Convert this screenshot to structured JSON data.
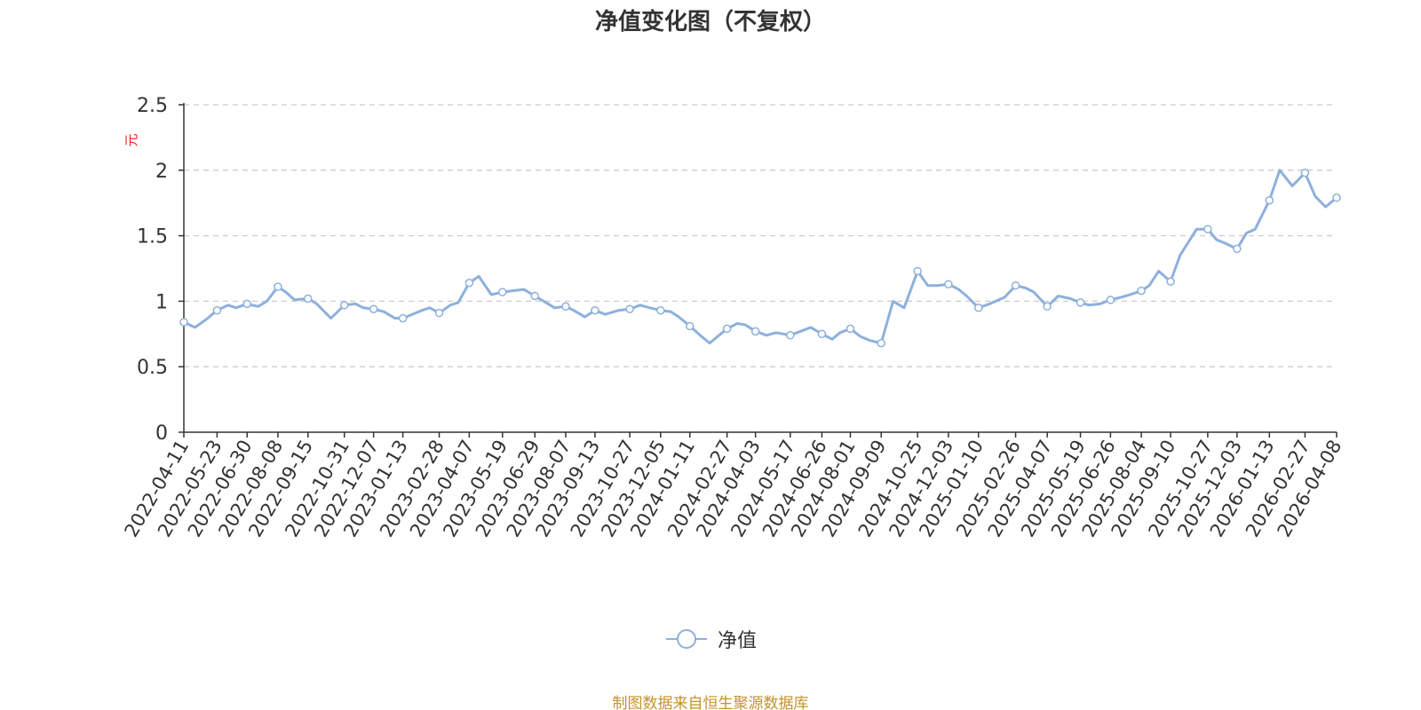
{
  "chart_data": {
    "type": "line",
    "title": "净值变化图（不复权）",
    "ylabel": "元",
    "xlabel": "",
    "ylim": [
      0,
      2.5
    ],
    "yticks": [
      0,
      0.5,
      1,
      1.5,
      2,
      2.5
    ],
    "ytick_labels": [
      "0",
      "0.5",
      "1",
      "1.5",
      "2",
      "2.5"
    ],
    "grid": "horizontal-dashed",
    "legend_position": "bottom-center",
    "line_color": "#8eb0dc",
    "x_tick_labels": [
      "2022-04-11",
      "2022-05-23",
      "2022-06-30",
      "2022-08-08",
      "2022-09-15",
      "2022-10-31",
      "2022-12-07",
      "2023-01-13",
      "2023-02-28",
      "2023-04-07",
      "2023-05-19",
      "2023-06-29",
      "2023-08-07",
      "2023-09-13",
      "2023-10-27",
      "2023-12-05",
      "2024-01-11",
      "2024-02-27",
      "2024-04-03",
      "2024-05-17",
      "2024-06-26",
      "2024-08-01",
      "2024-09-09",
      "2024-10-25",
      "2024-12-03",
      "2025-01-10",
      "2025-02-26",
      "2025-04-07",
      "2025-05-19",
      "2025-06-26",
      "2025-08-04",
      "2025-09-10",
      "2025-10-27",
      "2025-12-03",
      "2026-01-13",
      "2026-02-27",
      "2026-04-08"
    ],
    "series": [
      {
        "name": "净值",
        "x": [
          "2022-04-11",
          "2022-04-25",
          "2022-05-09",
          "2022-05-23",
          "2022-06-06",
          "2022-06-16",
          "2022-06-30",
          "2022-07-14",
          "2022-07-25",
          "2022-08-08",
          "2022-08-18",
          "2022-08-29",
          "2022-09-15",
          "2022-09-26",
          "2022-10-14",
          "2022-10-31",
          "2022-11-14",
          "2022-11-24",
          "2022-12-07",
          "2022-12-20",
          "2023-01-03",
          "2023-01-13",
          "2023-02-06",
          "2023-02-16",
          "2023-02-28",
          "2023-03-14",
          "2023-03-24",
          "2023-04-07",
          "2023-04-19",
          "2023-05-05",
          "2023-05-19",
          "2023-06-01",
          "2023-06-15",
          "2023-06-29",
          "2023-07-13",
          "2023-07-24",
          "2023-08-07",
          "2023-08-17",
          "2023-08-31",
          "2023-09-13",
          "2023-09-26",
          "2023-10-13",
          "2023-10-27",
          "2023-11-09",
          "2023-11-21",
          "2023-12-05",
          "2023-12-18",
          "2023-12-28",
          "2024-01-11",
          "2024-01-24",
          "2024-02-05",
          "2024-02-27",
          "2024-03-11",
          "2024-03-21",
          "2024-04-03",
          "2024-04-17",
          "2024-04-29",
          "2024-05-17",
          "2024-05-30",
          "2024-06-12",
          "2024-06-26",
          "2024-07-09",
          "2024-07-19",
          "2024-08-01",
          "2024-08-14",
          "2024-08-26",
          "2024-09-09",
          "2024-09-24",
          "2024-10-08",
          "2024-10-25",
          "2024-11-07",
          "2024-11-19",
          "2024-12-03",
          "2024-12-16",
          "2024-12-26",
          "2025-01-10",
          "2025-01-24",
          "2025-02-12",
          "2025-02-26",
          "2025-03-11",
          "2025-03-21",
          "2025-04-07",
          "2025-04-21",
          "2025-05-06",
          "2025-05-19",
          "2025-05-30",
          "2025-06-13",
          "2025-06-26",
          "2025-07-09",
          "2025-07-21",
          "2025-08-04",
          "2025-08-14",
          "2025-08-26",
          "2025-09-10",
          "2025-09-22",
          "2025-10-13",
          "2025-10-27",
          "2025-11-07",
          "2025-11-19",
          "2025-12-03",
          "2025-12-15",
          "2025-12-26",
          "2026-01-13",
          "2026-01-26",
          "2026-02-11",
          "2026-02-27",
          "2026-03-12",
          "2026-03-25",
          "2026-04-08"
        ],
        "values": [
          0.84,
          0.8,
          0.86,
          0.93,
          0.97,
          0.95,
          0.98,
          0.96,
          1.0,
          1.11,
          1.07,
          1.01,
          1.02,
          0.98,
          0.87,
          0.97,
          0.98,
          0.95,
          0.94,
          0.92,
          0.87,
          0.87,
          0.93,
          0.95,
          0.91,
          0.97,
          0.99,
          1.14,
          1.19,
          1.05,
          1.07,
          1.08,
          1.09,
          1.04,
          0.99,
          0.95,
          0.96,
          0.93,
          0.88,
          0.93,
          0.9,
          0.93,
          0.94,
          0.97,
          0.95,
          0.93,
          0.92,
          0.88,
          0.81,
          0.74,
          0.68,
          0.79,
          0.83,
          0.82,
          0.77,
          0.74,
          0.76,
          0.74,
          0.77,
          0.8,
          0.75,
          0.71,
          0.76,
          0.79,
          0.73,
          0.7,
          0.68,
          1.0,
          0.95,
          1.23,
          1.12,
          1.12,
          1.13,
          1.09,
          1.04,
          0.95,
          0.98,
          1.03,
          1.12,
          1.1,
          1.07,
          0.96,
          1.04,
          1.02,
          0.99,
          0.97,
          0.98,
          1.01,
          1.03,
          1.05,
          1.08,
          1.12,
          1.23,
          1.15,
          1.35,
          1.55,
          1.55,
          1.47,
          1.44,
          1.4,
          1.52,
          1.55,
          1.77,
          2.0,
          1.88,
          1.98,
          1.8,
          1.72,
          1.79
        ],
        "marker_dates": [
          "2022-04-11",
          "2022-05-23",
          "2022-06-30",
          "2022-08-08",
          "2022-09-15",
          "2022-10-31",
          "2022-12-07",
          "2023-01-13",
          "2023-02-28",
          "2023-04-07",
          "2023-05-19",
          "2023-06-29",
          "2023-08-07",
          "2023-09-13",
          "2023-10-27",
          "2023-12-05",
          "2024-01-11",
          "2024-02-27",
          "2024-04-03",
          "2024-05-17",
          "2024-06-26",
          "2024-08-01",
          "2024-09-09",
          "2024-10-25",
          "2024-12-03",
          "2025-01-10",
          "2025-02-26",
          "2025-04-07",
          "2025-05-19",
          "2025-06-26",
          "2025-08-04",
          "2025-09-10",
          "2025-10-27",
          "2025-12-03",
          "2026-01-13",
          "2026-02-27",
          "2026-04-08"
        ]
      }
    ]
  },
  "legend": {
    "label": "净值"
  },
  "footer": {
    "source": "制图数据来自恒生聚源数据库"
  }
}
